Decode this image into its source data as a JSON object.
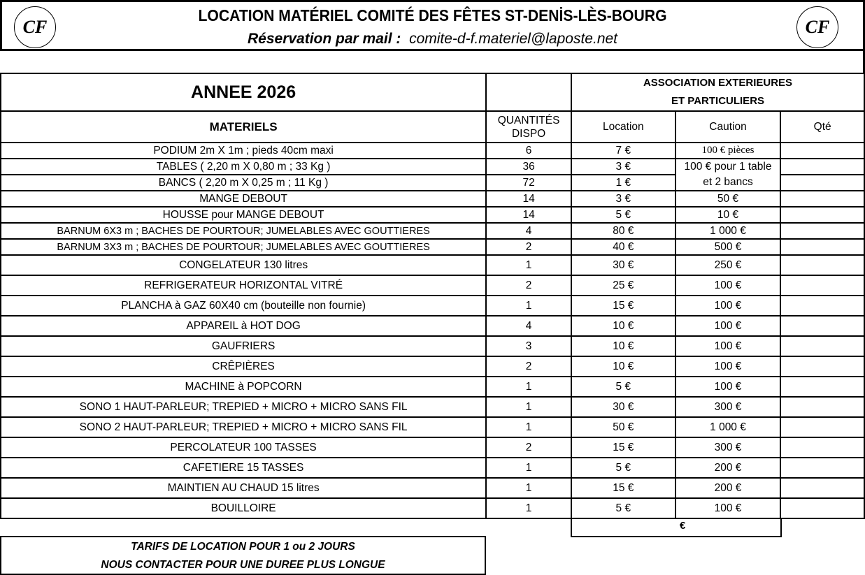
{
  "header": {
    "title": "LOCATION MATÉRIEL COMITÉ DES FÊTES ST-DENİS-LÈS-BOURG",
    "reservation_label": "Réservation par mail :",
    "email": "comite-d-f.materiel@laposte.net",
    "logo_text": "Comité des Fêtes Saint-Denis-lès-Bourg",
    "logo_monogram": "CF"
  },
  "table": {
    "year_label": "ANNEE 2026",
    "group_header": [
      "ASSOCIATION EXTERIEURES",
      "ET PARTICULIERS"
    ],
    "columns": {
      "materiels": "MATERIELS",
      "quantites": [
        "QUANTITÉS",
        "DISPO"
      ],
      "location": "Location",
      "caution": "Caution",
      "qte": "Qté"
    },
    "rows": [
      {
        "item": "PODIUM 2m X 1m ; pieds 40cm maxi",
        "qty": "6",
        "location": "7 €",
        "caution": "100 € pièces"
      },
      {
        "item": "TABLES ( 2,20 m X 0,80 m ; 33 Kg )",
        "qty": "36",
        "location": "3 €",
        "caution": "100 € pour 1 table et 2 bancs"
      },
      {
        "item": "BANCS ( 2,20 m X 0,25 m ; 11 Kg )",
        "qty": "72",
        "location": "1 €",
        "caution": ""
      },
      {
        "item": "MANGE DEBOUT",
        "qty": "14",
        "location": "3 €",
        "caution": "50 €"
      },
      {
        "item": "HOUSSE pour MANGE DEBOUT",
        "qty": "14",
        "location": "5 €",
        "caution": "10 €"
      },
      {
        "item": "BARNUM 6X3 m ; BACHES DE POURTOUR; JUMELABLES AVEC GOUTTIERES",
        "qty": "4",
        "location": "80 €",
        "caution": "1 000 €"
      },
      {
        "item": "BARNUM 3X3 m ; BACHES DE POURTOUR; JUMELABLES AVEC GOUTTIERES",
        "qty": "2",
        "location": "40 €",
        "caution": "500 €"
      },
      {
        "item": "CONGELATEUR 130 litres",
        "qty": "1",
        "location": "30 €",
        "caution": "250 €"
      },
      {
        "item": "REFRIGERATEUR HORIZONTAL VITRÉ",
        "qty": "2",
        "location": "25 €",
        "caution": "100 €"
      },
      {
        "item": "PLANCHA à GAZ 60X40 cm (bouteille non fournie)",
        "qty": "1",
        "location": "15 €",
        "caution": "100 €"
      },
      {
        "item": "APPAREIL à HOT DOG",
        "qty": "4",
        "location": "10 €",
        "caution": "100 €"
      },
      {
        "item": "GAUFRIERS",
        "qty": "3",
        "location": "10 €",
        "caution": "100 €"
      },
      {
        "item": "CRÊPIÈRES",
        "qty": "2",
        "location": "10 €",
        "caution": "100 €"
      },
      {
        "item": "MACHINE à POPCORN",
        "qty": "1",
        "location": "5 €",
        "caution": "100 €"
      },
      {
        "item": "SONO 1 HAUT-PARLEUR; TREPIED + MICRO + MICRO SANS FIL",
        "qty": "1",
        "location": "30 €",
        "caution": "300 €"
      },
      {
        "item": "SONO 2 HAUT-PARLEUR; TREPIED + MICRO + MICRO SANS FIL",
        "qty": "1",
        "location": "50 €",
        "caution": "1 000 €"
      },
      {
        "item": "PERCOLATEUR 100 TASSES",
        "qty": "2",
        "location": "15 €",
        "caution": "300 €"
      },
      {
        "item": "CAFETIERE 15 TASSES",
        "qty": "1",
        "location": "5 €",
        "caution": "200 €"
      },
      {
        "item": "MAINTIEN AU CHAUD 15 litres",
        "qty": "1",
        "location": "15 €",
        "caution": "200 €"
      },
      {
        "item": "BOUILLOIRE",
        "qty": "1",
        "location": "5 €",
        "caution": "100 €"
      }
    ],
    "total": "€"
  },
  "footer": {
    "line1": "TARIFS DE LOCATION POUR 1 ou 2 JOURS",
    "line2": "NOUS CONTACTER POUR UNE DUREE PLUS LONGUE"
  }
}
